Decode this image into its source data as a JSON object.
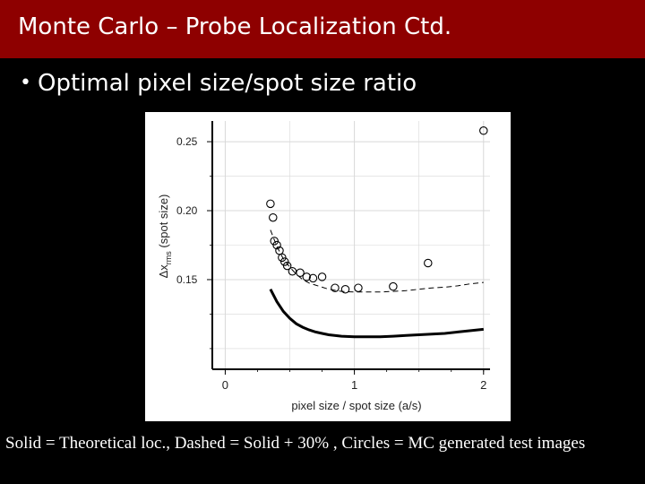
{
  "slide": {
    "title": "Monte Carlo – Probe Localization Ctd.",
    "bullet": "Optimal pixel size/spot size ratio",
    "caption": "Solid = Theoretical loc., Dashed = Solid + 30% , Circles = MC generated test images"
  },
  "colors": {
    "title_bar": "#8e0000",
    "background": "#000000",
    "text": "#ffffff",
    "plot_bg": "#ffffff",
    "grid": "#d8d8d8",
    "series": "#000000"
  },
  "chart_data": {
    "type": "line",
    "title": "",
    "xlabel": "pixel size / spot size (a/s)",
    "ylabel": "Δx_rms (spot size)",
    "ylabel_main": "Δx",
    "ylabel_sub": "rms",
    "ylabel_tail": "(spot size)",
    "xlim": [
      -0.1,
      2.05
    ],
    "ylim": [
      0.085,
      0.265
    ],
    "xticks": [
      0,
      1,
      2
    ],
    "xtick_labels": [
      "0",
      "1",
      "2"
    ],
    "yticks": [
      0.15,
      0.2,
      0.25
    ],
    "ytick_labels": [
      "0.15",
      "0.20",
      "0.25"
    ],
    "grid": true,
    "series": [
      {
        "style": "solid",
        "x": [
          0.35,
          0.4,
          0.45,
          0.5,
          0.55,
          0.6,
          0.65,
          0.7,
          0.75,
          0.8,
          0.9,
          1.0,
          1.1,
          1.2,
          1.3,
          1.4,
          1.5,
          1.6,
          1.7,
          1.8,
          1.9,
          2.0
        ],
        "y": [
          0.143,
          0.134,
          0.127,
          0.122,
          0.118,
          0.1155,
          0.1135,
          0.112,
          0.111,
          0.11,
          0.109,
          0.1085,
          0.1085,
          0.1085,
          0.109,
          0.1095,
          0.11,
          0.1105,
          0.111,
          0.112,
          0.113,
          0.114
        ]
      },
      {
        "style": "dashed",
        "x": [
          0.35,
          0.4,
          0.45,
          0.5,
          0.55,
          0.6,
          0.65,
          0.7,
          0.75,
          0.8,
          0.9,
          1.0,
          1.1,
          1.2,
          1.3,
          1.4,
          1.5,
          1.6,
          1.7,
          1.8,
          1.9,
          2.0
        ],
        "y": [
          0.186,
          0.174,
          0.165,
          0.159,
          0.154,
          0.15,
          0.1475,
          0.146,
          0.1445,
          0.143,
          0.1415,
          0.141,
          0.141,
          0.141,
          0.1415,
          0.142,
          0.143,
          0.144,
          0.1445,
          0.1455,
          0.147,
          0.148
        ]
      },
      {
        "style": "circles",
        "x": [
          0.35,
          0.37,
          0.38,
          0.4,
          0.42,
          0.44,
          0.46,
          0.48,
          0.52,
          0.58,
          0.63,
          0.68,
          0.75,
          0.85,
          0.93,
          1.03,
          1.3,
          1.57,
          2.0
        ],
        "y": [
          0.205,
          0.195,
          0.178,
          0.175,
          0.171,
          0.166,
          0.163,
          0.16,
          0.156,
          0.155,
          0.152,
          0.151,
          0.152,
          0.144,
          0.143,
          0.144,
          0.145,
          0.162,
          0.258
        ]
      }
    ]
  }
}
